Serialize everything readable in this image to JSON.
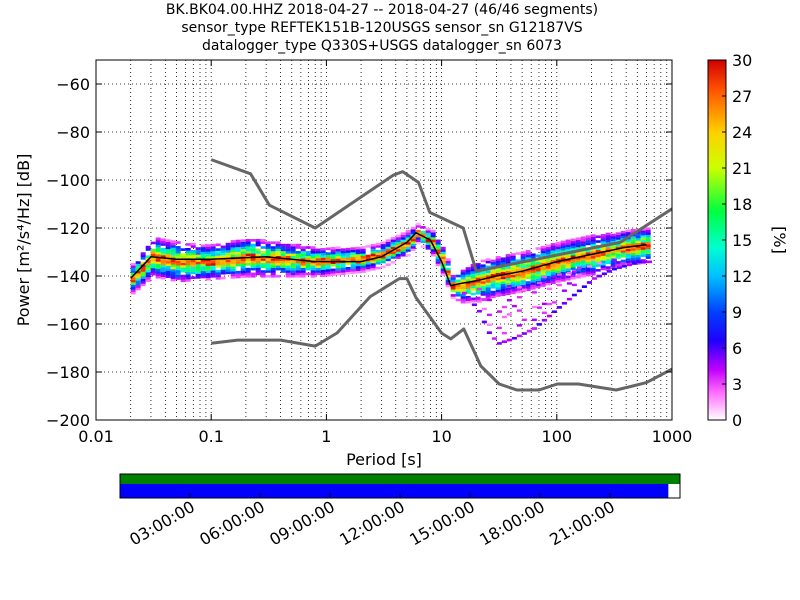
{
  "title": {
    "line1": "BK.BK04.00.HHZ   2018-04-27 -- 2018-04-27  (46/46 segments)",
    "line2": "sensor_type REFTEK151B-120USGS sensor_sn G12187VS",
    "line3": "datalogger_type Q330S+USGS datalogger_sn 6073"
  },
  "chart_data": [
    {
      "type": "heatmap",
      "title": "BK.BK04.00.HHZ   2018-04-27 -- 2018-04-27  (46/46 segments)",
      "xlabel": "Period [s]",
      "ylabel": "Power [m²/s⁴/Hz] [dB]",
      "xscale": "log",
      "xlim": [
        0.01,
        1000
      ],
      "ylim": [
        -200,
        -50
      ],
      "xticks": [
        "0.01",
        "0.1",
        "1",
        "10",
        "100",
        "1000"
      ],
      "yticks": [
        "−200",
        "−180",
        "−160",
        "−140",
        "−120",
        "−100",
        "−80",
        "−60"
      ],
      "grid": true,
      "colorbar": {
        "label": "[%]",
        "range": [
          0,
          30
        ],
        "ticks": [
          "0",
          "3",
          "6",
          "9",
          "12",
          "15",
          "18",
          "21",
          "24",
          "27",
          "30"
        ]
      },
      "series": [
        {
          "role": "mode-curve",
          "color": "#000000",
          "x": [
            0.02,
            0.03,
            0.05,
            0.1,
            0.3,
            0.8,
            2,
            3,
            5,
            6,
            8,
            10,
            12,
            15,
            20,
            30,
            50,
            100,
            200,
            400,
            600
          ],
          "y": [
            -141,
            -132,
            -133,
            -133,
            -132,
            -134,
            -134,
            -132,
            -126,
            -122,
            -125,
            -134,
            -144,
            -143,
            -142,
            -140,
            -138,
            -134,
            -131,
            -128,
            -127
          ]
        },
        {
          "role": "nhnm",
          "color": "#666666",
          "x": [
            0.1,
            0.22,
            0.32,
            0.8,
            3.8,
            4.6,
            6.3,
            7.9,
            15.4,
            20,
            354.8,
            1000
          ],
          "y": [
            -91.5,
            -97.4,
            -110.5,
            -120,
            -98,
            -96.5,
            -101,
            -113.5,
            -120,
            -138,
            -126,
            -112
          ]
        },
        {
          "role": "nlnm",
          "color": "#666666",
          "x": [
            0.1,
            0.17,
            0.4,
            0.8,
            1.24,
            2.4,
            4.3,
            5,
            6,
            10,
            12,
            15.6,
            21.9,
            31.6,
            45,
            70,
            101,
            154,
            328,
            600,
            1000
          ],
          "y": [
            -168,
            -166.7,
            -166.7,
            -169.2,
            -163.7,
            -148.6,
            -141.1,
            -141.1,
            -149,
            -163.8,
            -166.2,
            -162.1,
            -177.5,
            -185,
            -187.5,
            -187.5,
            -185,
            -185,
            -187.5,
            -184.4,
            -178.8
          ]
        }
      ],
      "cloud": {
        "x": [
          0.02,
          0.03,
          0.05,
          0.1,
          0.2,
          0.4,
          0.8,
          2,
          3,
          5,
          6,
          8,
          10,
          12,
          15,
          20,
          30,
          50,
          100,
          200,
          400,
          650
        ],
        "center": [
          -141,
          -132,
          -134,
          -134,
          -132,
          -133,
          -134,
          -133,
          -131,
          -126,
          -122,
          -126,
          -134,
          -144,
          -144,
          -142,
          -140,
          -138,
          -134,
          -131,
          -128,
          -127
        ],
        "spread": [
          4,
          6,
          6,
          5,
          6,
          5,
          4,
          3,
          3,
          3,
          2,
          3,
          4,
          3,
          5,
          6,
          6,
          6,
          6,
          6,
          5,
          5
        ]
      },
      "low_branch": {
        "x": [
          15,
          20,
          25,
          30,
          40,
          60,
          80,
          100,
          150,
          200,
          300,
          500,
          650
        ],
        "y": [
          -147,
          -154,
          -164,
          -168,
          -166,
          -162,
          -157,
          -153,
          -146,
          -141,
          -137,
          -134,
          -134
        ]
      }
    },
    {
      "type": "timeline",
      "range_hours": [
        0,
        24
      ],
      "tick_labels": [
        "03:00:00",
        "06:00:00",
        "09:00:00",
        "12:00:00",
        "15:00:00",
        "18:00:00",
        "21:00:00"
      ],
      "tick_hours": [
        3,
        6,
        9,
        12,
        15,
        18,
        21
      ],
      "bars": [
        {
          "role": "coverage",
          "start_hour": 0,
          "end_hour": 24,
          "color": "#008000"
        },
        {
          "role": "used",
          "start_hour": 0,
          "end_hour": 23.5,
          "color": "#0000ff"
        }
      ]
    }
  ]
}
